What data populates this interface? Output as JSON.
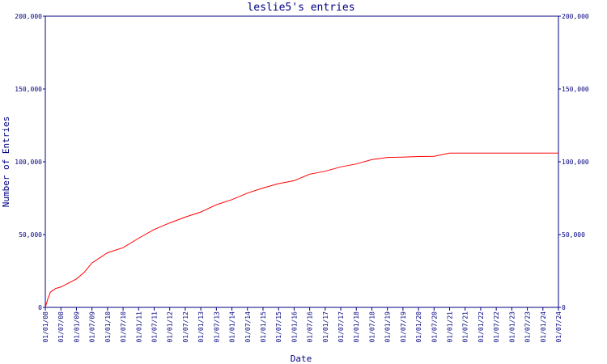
{
  "chart_data": {
    "type": "line",
    "title": "leslie5's entries",
    "xlabel": "Date",
    "ylabel": "Number of Entries",
    "ylim": [
      0,
      200000
    ],
    "grid": false,
    "y_ticks": [
      {
        "value": 0,
        "label": "0"
      },
      {
        "value": 50000,
        "label": "50,000"
      },
      {
        "value": 100000,
        "label": "100,000"
      },
      {
        "value": 150000,
        "label": "150,000"
      },
      {
        "value": 200000,
        "label": "200,000"
      }
    ],
    "x_ticks": [
      "01/01/08",
      "01/07/08",
      "01/01/09",
      "01/07/09",
      "01/01/10",
      "01/07/10",
      "01/01/11",
      "01/07/11",
      "01/01/12",
      "01/07/12",
      "01/01/13",
      "01/07/13",
      "01/01/14",
      "01/07/14",
      "01/01/15",
      "01/07/15",
      "01/01/16",
      "01/07/16",
      "01/01/17",
      "01/07/17",
      "01/01/18",
      "01/07/18",
      "01/01/19",
      "01/07/19",
      "01/01/20",
      "01/07/20",
      "01/01/21",
      "01/07/21",
      "01/01/22",
      "01/07/22",
      "01/01/23",
      "01/07/23",
      "01/01/24",
      "01/07/24"
    ],
    "colors": {
      "axis": "#000080",
      "line": "#ff0000"
    },
    "series": [
      {
        "points": [
          [
            "01/01/08",
            0
          ],
          [
            "01/02/08",
            6000
          ],
          [
            "01/03/08",
            10500
          ],
          [
            "01/05/08",
            13000
          ],
          [
            "01/07/08",
            14000
          ],
          [
            "01/01/09",
            19500
          ],
          [
            "01/04/09",
            24000
          ],
          [
            "01/07/09",
            30500
          ],
          [
            "01/01/10",
            37500
          ],
          [
            "01/07/10",
            41000
          ],
          [
            "01/01/11",
            47500
          ],
          [
            "01/07/11",
            53500
          ],
          [
            "01/01/12",
            58000
          ],
          [
            "01/07/12",
            62000
          ],
          [
            "01/01/13",
            65500
          ],
          [
            "01/07/13",
            70500
          ],
          [
            "01/01/14",
            74000
          ],
          [
            "01/07/14",
            78500
          ],
          [
            "01/01/15",
            82000
          ],
          [
            "01/07/15",
            85000
          ],
          [
            "01/01/16",
            87000
          ],
          [
            "01/07/16",
            91500
          ],
          [
            "01/01/17",
            93500
          ],
          [
            "01/07/17",
            96500
          ],
          [
            "01/01/18",
            98500
          ],
          [
            "01/07/18",
            101500
          ],
          [
            "01/01/19",
            103000
          ],
          [
            "01/07/19",
            103200
          ],
          [
            "01/01/20",
            103600
          ],
          [
            "01/07/20",
            103800
          ],
          [
            "01/01/21",
            106000
          ],
          [
            "01/07/24",
            106000
          ]
        ]
      }
    ]
  }
}
